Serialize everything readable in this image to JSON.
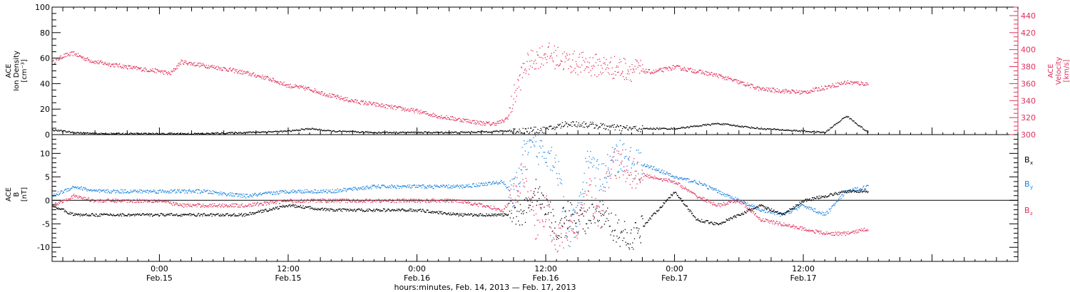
{
  "colors": {
    "density": "#000000",
    "velocity": "#e0305a",
    "bx": "#000000",
    "by": "#1a82e0",
    "bz": "#e0305a",
    "axis": "#000000"
  },
  "chart_data": [
    {
      "type": "scatter",
      "panel": "top",
      "ylabel_lines": [
        "ACE",
        "Ion Density",
        "[cm⁻³]"
      ],
      "y2label_lines": [
        "ACE",
        "Velocity",
        "[km/s]"
      ],
      "ylim": [
        0,
        100
      ],
      "y2lim": [
        300,
        450
      ],
      "yticks": [
        0,
        20,
        40,
        60,
        80,
        100
      ],
      "y2ticks": [
        300,
        320,
        340,
        360,
        380,
        400,
        420,
        440
      ],
      "x_unit": "hours since 00:00 Feb. 14, 2013",
      "series": [
        {
          "key": "density",
          "axis": "left",
          "x": [
            14,
            16,
            18,
            20,
            24,
            28,
            32,
            36,
            38,
            40,
            44,
            48,
            52,
            56,
            60,
            62,
            64,
            66,
            68,
            70,
            72,
            76,
            80,
            84,
            86,
            88,
            90
          ],
          "y": [
            4,
            2,
            1,
            1,
            1,
            1,
            2,
            3,
            5,
            3,
            2,
            2,
            2,
            3,
            4,
            9,
            8,
            6,
            5,
            5,
            5,
            9,
            5,
            3,
            2,
            15,
            2
          ]
        },
        {
          "key": "velocity",
          "axis": "right",
          "x": [
            14,
            15,
            16,
            17,
            18,
            20,
            22,
            24,
            25,
            26,
            28,
            30,
            32,
            34,
            36,
            38,
            40,
            42,
            44,
            46,
            48,
            50,
            52,
            54,
            55,
            56,
            56.5,
            57,
            58,
            59,
            60,
            62,
            64,
            66,
            68,
            70,
            72,
            74,
            76,
            78,
            80,
            82,
            84,
            86,
            88,
            90
          ],
          "y": [
            385,
            393,
            396,
            390,
            386,
            382,
            378,
            375,
            372,
            386,
            382,
            378,
            373,
            367,
            358,
            354,
            346,
            340,
            336,
            332,
            328,
            322,
            318,
            314,
            313,
            316,
            322,
            345,
            380,
            390,
            396,
            386,
            383,
            380,
            377,
            374,
            380,
            375,
            370,
            362,
            354,
            352,
            350,
            356,
            362,
            360
          ]
        }
      ]
    },
    {
      "type": "scatter",
      "panel": "bottom",
      "ylabel_lines": [
        "ACE",
        "B",
        "[nT]"
      ],
      "ylim": [
        -13,
        14
      ],
      "yticks": [
        -10,
        -5,
        0,
        5,
        10
      ],
      "x_unit": "hours since 00:00 Feb. 14, 2013",
      "xlim": [
        14,
        104
      ],
      "xtick_labels": [
        {
          "x": 24,
          "time": "0:00",
          "date": "Feb.15"
        },
        {
          "x": 36,
          "time": "12:00",
          "date": "Feb.15"
        },
        {
          "x": 48,
          "time": "0:00",
          "date": "Feb.16"
        },
        {
          "x": 60,
          "time": "12:00",
          "date": "Feb.16"
        },
        {
          "x": 72,
          "time": "0:00",
          "date": "Feb.17"
        },
        {
          "x": 84,
          "time": "12:00",
          "date": "Feb.17"
        }
      ],
      "xlabel": "hours:minutes, Feb. 14, 2013 — Feb. 17, 2013",
      "legend": [
        "B",
        "B",
        "B"
      ],
      "legend_subscripts": [
        "x",
        "y",
        "z"
      ],
      "series": [
        {
          "key": "bx",
          "x": [
            14,
            16,
            20,
            24,
            28,
            32,
            36,
            40,
            44,
            48,
            52,
            56,
            57,
            58,
            59,
            60,
            61,
            62,
            63,
            64,
            65,
            66,
            67,
            68,
            70,
            72,
            74,
            76,
            78,
            80,
            82,
            84,
            86,
            88,
            90
          ],
          "y": [
            -1,
            -3,
            -3,
            -3,
            -3,
            -3,
            -1,
            -2,
            -2,
            -2,
            -3,
            -3,
            -3,
            -2,
            2,
            -1,
            -6,
            -3,
            -4,
            -4,
            -3,
            -5,
            -7,
            -8,
            -3,
            2,
            -4,
            -5,
            -3,
            -1,
            -3,
            0,
            1,
            2,
            2
          ]
        },
        {
          "key": "by",
          "x": [
            14,
            16,
            18,
            20,
            24,
            28,
            32,
            36,
            40,
            44,
            48,
            52,
            56,
            57,
            58,
            59,
            60,
            61,
            62,
            63,
            64,
            65,
            66,
            67,
            68,
            70,
            72,
            74,
            76,
            78,
            80,
            82,
            84,
            86,
            88,
            90
          ],
          "y": [
            1,
            3,
            2,
            2,
            2,
            2,
            1,
            2,
            2,
            3,
            3,
            3,
            4,
            1,
            10,
            11,
            11,
            8,
            -8,
            -3,
            10,
            4,
            8,
            10,
            8,
            7,
            5,
            4,
            2,
            0,
            -2,
            -3,
            -1,
            -3,
            2,
            3
          ]
        },
        {
          "key": "bz",
          "x": [
            14,
            16,
            18,
            20,
            22,
            24,
            26,
            28,
            30,
            32,
            36,
            40,
            44,
            48,
            52,
            54,
            56,
            57,
            58,
            59,
            60,
            61,
            62,
            63,
            64,
            65,
            66,
            67,
            68,
            70,
            72,
            74,
            76,
            78,
            80,
            82,
            84,
            86,
            88,
            90
          ],
          "y": [
            -1,
            1,
            0,
            0,
            0,
            0,
            -1,
            -1,
            -1,
            -1,
            0,
            0,
            0,
            0,
            0,
            -1,
            -2,
            1,
            6,
            -5,
            -2,
            -9,
            -6,
            -5,
            2,
            -4,
            7,
            8,
            6,
            5,
            4,
            1,
            -1,
            0,
            -4,
            -5,
            -6,
            -7,
            -7,
            -6
          ]
        }
      ]
    }
  ]
}
